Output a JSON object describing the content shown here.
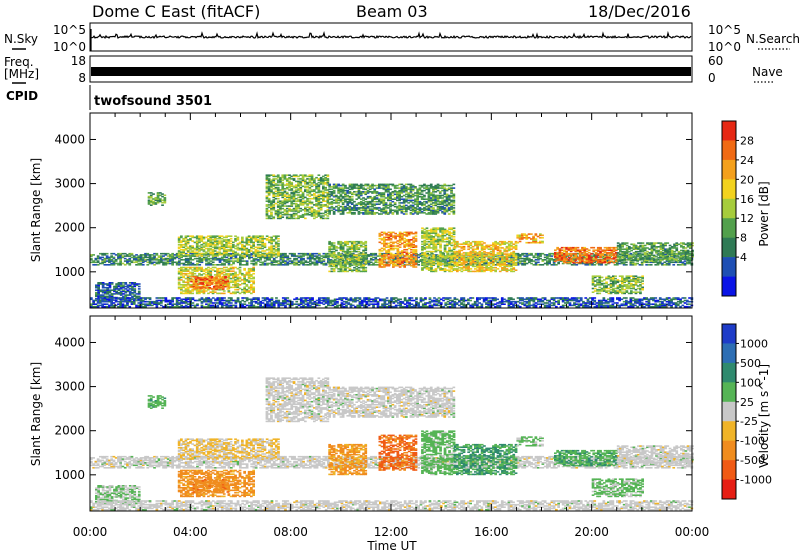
{
  "header": {
    "title": "Dome C East (fitACF)",
    "beam": "Beam 03",
    "date": "18/Dec/2016"
  },
  "nsky_panel": {
    "left_label": "N.Sky",
    "left_ticks": [
      "10^5",
      "10^0"
    ],
    "right_ticks": [
      "10^5",
      "10^0"
    ],
    "right_label": "N.Search"
  },
  "freq_panel": {
    "left_label_top": "Freq.",
    "left_label_unit": "[MHz]",
    "left_ticks": [
      "18",
      "8"
    ],
    "right_ticks": [
      "60",
      "0"
    ],
    "right_label": "Nave"
  },
  "cpid": {
    "label": "CPID",
    "program": "twofsound 3501"
  },
  "power_panel": {
    "ylabel": "Slant Range [km]",
    "yticks": [
      "4000",
      "3000",
      "2000",
      "1000"
    ],
    "colorbar_label": "Power [dB]",
    "colorbar_ticks": [
      "28",
      "24",
      "20",
      "16",
      "12",
      "8",
      "4"
    ],
    "colors": [
      "#0a14e6",
      "#1e4fb4",
      "#2f7a55",
      "#52a04c",
      "#a6cc3c",
      "#f2d21e",
      "#f4a01c",
      "#f06a14",
      "#e62814"
    ]
  },
  "velocity_panel": {
    "ylabel": "Slant Range [km]",
    "yticks": [
      "4000",
      "3000",
      "2000",
      "1000"
    ],
    "colorbar_label": "Velocity [m s^-1]",
    "colorbar_ticks": [
      "1000",
      "500",
      "100",
      "25",
      "-25",
      "-100",
      "-500",
      "-1000"
    ],
    "colors": [
      "#1e3cc8",
      "#2d6eb4",
      "#2f8a6e",
      "#55b455",
      "#c8c8c8",
      "#f0b428",
      "#f08c1e",
      "#f05a14",
      "#e61e14"
    ]
  },
  "xaxis": {
    "ticks": [
      "00:00",
      "04:00",
      "08:00",
      "12:00",
      "16:00",
      "20:00",
      "00:00"
    ],
    "label": "Time UT"
  },
  "chart_data": {
    "type": "heatmap",
    "x_range_hours": [
      0,
      24
    ],
    "y_range_km": [
      180,
      4600
    ],
    "power_range_db": [
      0,
      32
    ],
    "velocity_range_ms": [
      -1200,
      1200
    ],
    "power_blobs": [
      {
        "t0": 0.0,
        "t1": 24.0,
        "r0": 1150,
        "r1": 1420,
        "db": 10
      },
      {
        "t0": 0.2,
        "t1": 2.0,
        "r0": 350,
        "r1": 750,
        "db": 7
      },
      {
        "t0": 3.5,
        "t1": 6.5,
        "r0": 500,
        "r1": 1100,
        "db": 18
      },
      {
        "t0": 4.0,
        "t1": 5.5,
        "r0": 600,
        "r1": 900,
        "db": 26
      },
      {
        "t0": 3.5,
        "t1": 7.5,
        "r0": 1350,
        "r1": 1800,
        "db": 16
      },
      {
        "t0": 2.3,
        "t1": 3.0,
        "r0": 2500,
        "r1": 2800,
        "db": 12
      },
      {
        "t0": 7.0,
        "t1": 9.5,
        "r0": 2200,
        "r1": 3200,
        "db": 14
      },
      {
        "t0": 9.5,
        "t1": 14.5,
        "r0": 2300,
        "r1": 3000,
        "db": 11
      },
      {
        "t0": 9.5,
        "t1": 11.0,
        "r0": 1000,
        "r1": 1700,
        "db": 14
      },
      {
        "t0": 11.5,
        "t1": 13.0,
        "r0": 1100,
        "r1": 1900,
        "db": 24
      },
      {
        "t0": 13.2,
        "t1": 14.5,
        "r0": 1000,
        "r1": 2000,
        "db": 16
      },
      {
        "t0": 14.5,
        "t1": 17.0,
        "r0": 1000,
        "r1": 1700,
        "db": 20
      },
      {
        "t0": 17.0,
        "t1": 18.0,
        "r0": 1650,
        "r1": 1850,
        "db": 22
      },
      {
        "t0": 18.5,
        "t1": 21.0,
        "r0": 1200,
        "r1": 1550,
        "db": 26
      },
      {
        "t0": 21.0,
        "t1": 24.0,
        "r0": 1250,
        "r1": 1650,
        "db": 12
      },
      {
        "t0": 20.0,
        "t1": 22.0,
        "r0": 500,
        "r1": 900,
        "db": 14
      },
      {
        "t0": 0.0,
        "t1": 24.0,
        "r0": 200,
        "r1": 420,
        "db": 6
      }
    ],
    "velocity_blobs": [
      {
        "t0": 0.0,
        "t1": 24.0,
        "r0": 1150,
        "r1": 1420,
        "v": 0
      },
      {
        "t0": 0.2,
        "t1": 2.0,
        "r0": 350,
        "r1": 750,
        "v": 150
      },
      {
        "t0": 3.5,
        "t1": 6.5,
        "r0": 500,
        "r1": 1100,
        "v": -500
      },
      {
        "t0": 4.0,
        "t1": 5.5,
        "r0": 600,
        "r1": 900,
        "v": -550
      },
      {
        "t0": 3.5,
        "t1": 7.5,
        "r0": 1350,
        "r1": 1800,
        "v": -150
      },
      {
        "t0": 2.3,
        "t1": 3.0,
        "r0": 2500,
        "r1": 2800,
        "v": 300
      },
      {
        "t0": 7.0,
        "t1": 9.5,
        "r0": 2200,
        "r1": 3200,
        "v": 0
      },
      {
        "t0": 9.5,
        "t1": 14.5,
        "r0": 2300,
        "r1": 3000,
        "v": 0
      },
      {
        "t0": 9.5,
        "t1": 11.0,
        "r0": 1000,
        "r1": 1700,
        "v": -450
      },
      {
        "t0": 11.5,
        "t1": 13.0,
        "r0": 1100,
        "r1": 1900,
        "v": -700
      },
      {
        "t0": 13.2,
        "t1": 14.5,
        "r0": 1000,
        "r1": 2000,
        "v": 250
      },
      {
        "t0": 14.5,
        "t1": 17.0,
        "r0": 1000,
        "r1": 1700,
        "v": 400
      },
      {
        "t0": 17.0,
        "t1": 18.0,
        "r0": 1650,
        "r1": 1850,
        "v": 200
      },
      {
        "t0": 18.5,
        "t1": 21.0,
        "r0": 1200,
        "r1": 1550,
        "v": 350
      },
      {
        "t0": 21.0,
        "t1": 24.0,
        "r0": 1250,
        "r1": 1650,
        "v": 0
      },
      {
        "t0": 20.0,
        "t1": 22.0,
        "r0": 500,
        "r1": 900,
        "v": 200
      },
      {
        "t0": 0.0,
        "t1": 24.0,
        "r0": 200,
        "r1": 420,
        "v": 0
      }
    ]
  }
}
